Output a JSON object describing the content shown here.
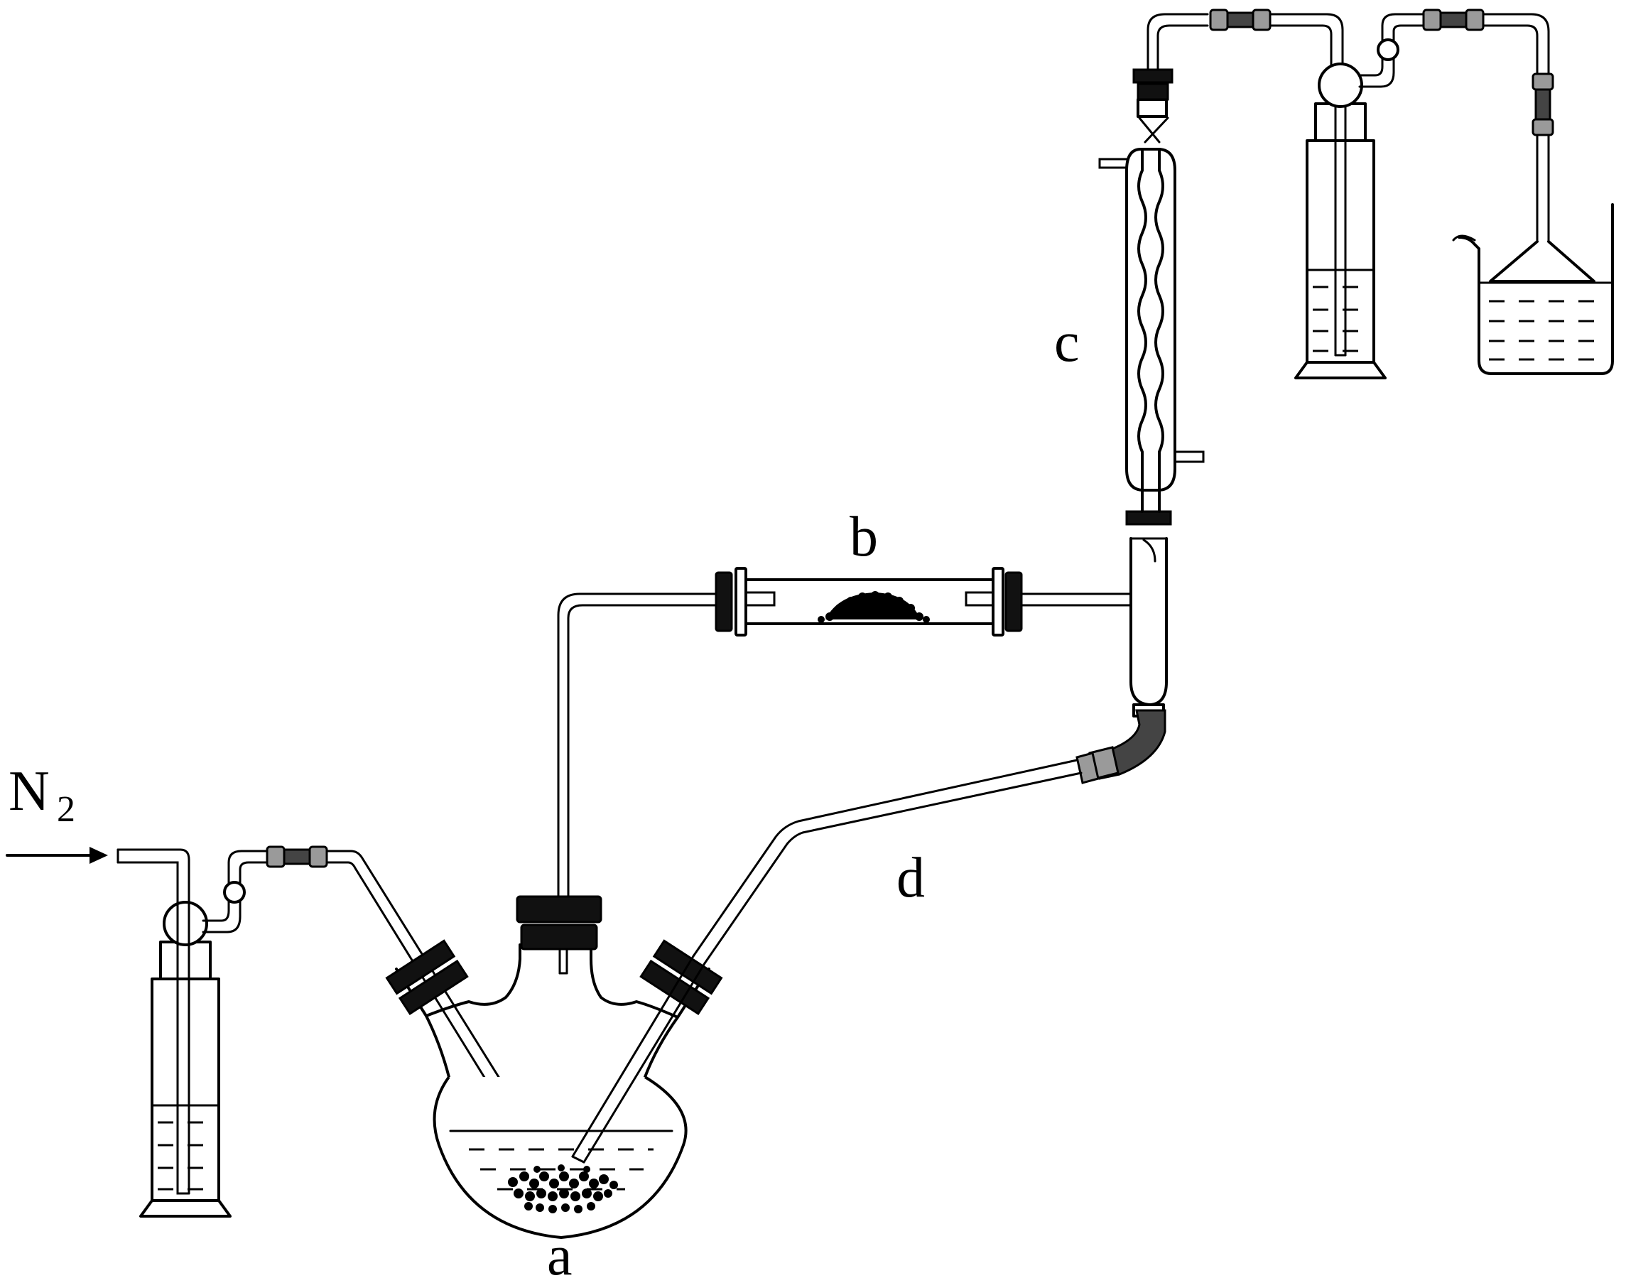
{
  "labels": {
    "gas": "N",
    "gas_subscript": "2",
    "flask": "a",
    "tube": "b",
    "condenser": "c",
    "connector": "d"
  }
}
